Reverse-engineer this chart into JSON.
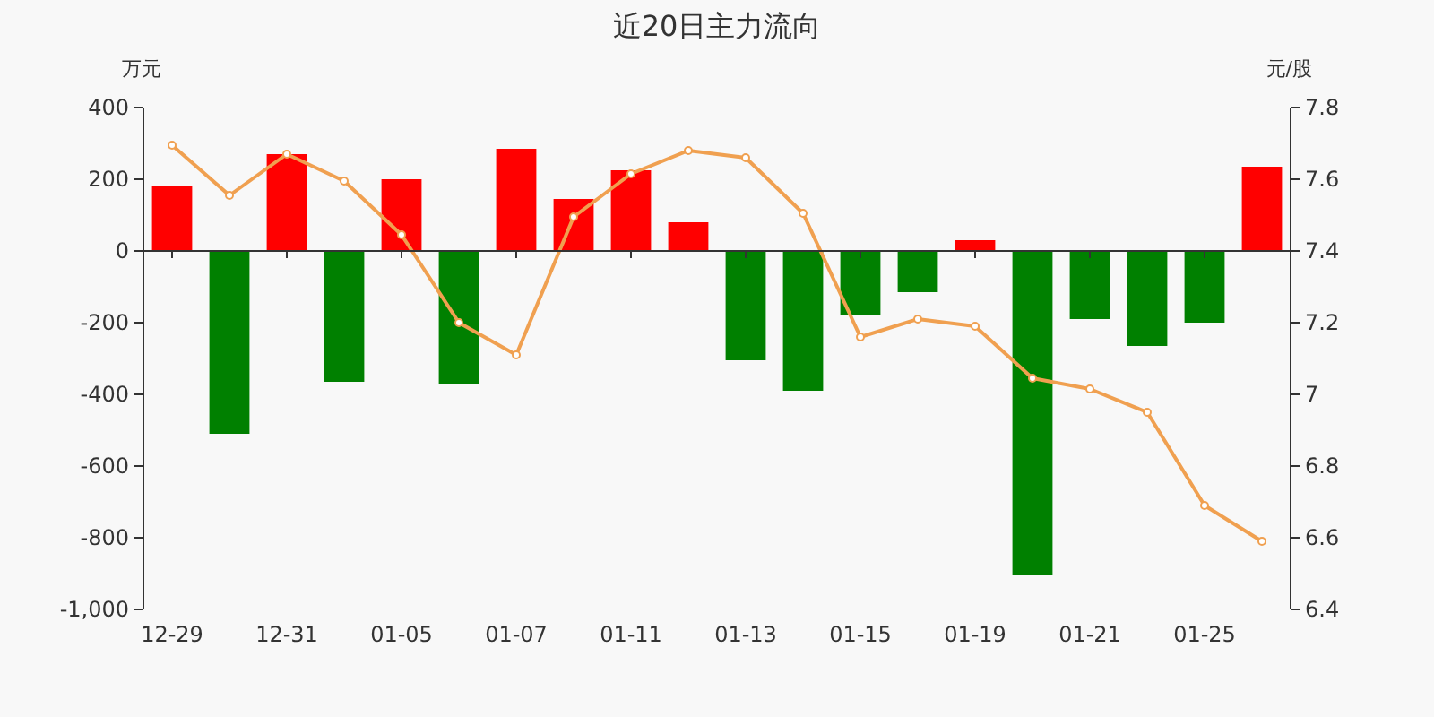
{
  "chart_data": {
    "type": "bar",
    "title": "近20日主力流向",
    "ylabel": "万元",
    "y2label": "元/股",
    "categories": [
      "12-29",
      null,
      "12-31",
      null,
      "01-05",
      null,
      "01-07",
      null,
      "01-11",
      null,
      "01-13",
      null,
      "01-15",
      null,
      "01-19",
      null,
      "01-21",
      null,
      "01-25",
      null
    ],
    "series": [
      {
        "colors": [
          "#ff0000",
          "#008000",
          "#ff0000",
          "#008000",
          "#ff0000",
          "#008000",
          "#ff0000",
          "#ff0000",
          "#ff0000",
          "#ff0000",
          "#008000",
          "#008000",
          "#008000",
          "#008000",
          "#ff0000",
          "#008000",
          "#008000",
          "#008000",
          "#008000",
          "#ff0000"
        ],
        "values": [
          180,
          -510,
          270,
          -365,
          200,
          -370,
          285,
          145,
          225,
          80,
          -305,
          -390,
          -180,
          -115,
          30,
          -905,
          -190,
          -265,
          -200,
          235
        ]
      },
      {
        "type": "line",
        "axis": "y2",
        "color": "#f0a050",
        "marker": "circle",
        "values": [
          7.695,
          7.555,
          7.67,
          7.595,
          7.445,
          7.2,
          7.11,
          7.495,
          7.615,
          7.68,
          7.66,
          7.505,
          7.16,
          7.21,
          7.19,
          7.045,
          7.015,
          6.95,
          6.69,
          6.59
        ]
      }
    ],
    "ylim": [
      -1000,
      400
    ],
    "yticks": [
      400,
      200,
      0,
      -200,
      -400,
      -600,
      -800,
      {
        "value": -1000,
        "label": "-1,000"
      }
    ],
    "y2lim": [
      6.4,
      7.8
    ],
    "y2ticks": [
      7.8,
      7.6,
      7.4,
      7.2,
      7,
      6.8,
      6.6,
      6.4
    ]
  }
}
